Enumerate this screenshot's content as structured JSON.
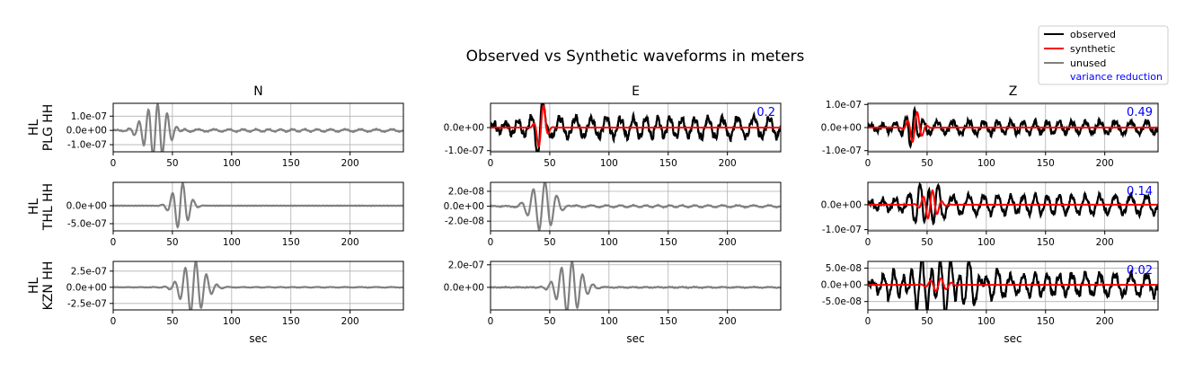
{
  "title": "Observed vs Synthetic waveforms in meters",
  "x_label": "sec",
  "legend": {
    "observed": "observed",
    "synthetic": "synthetic",
    "unused": "unused",
    "variance_reduction": "variance reduction"
  },
  "colors": {
    "observed": "#000000",
    "synthetic": "#ff0000",
    "unused": "#808080",
    "variance_reduction": "#0000ff",
    "grid": "#b0b0b0"
  },
  "column_titles": [
    "N",
    "E",
    "Z"
  ],
  "row_labels": [
    [
      "HL",
      "PLG HH"
    ],
    [
      "HL",
      "THL HH"
    ],
    [
      "HL",
      "KZN HH"
    ]
  ],
  "chart_data": {
    "type": "line",
    "xlim": [
      0,
      245
    ],
    "x_ticks": [
      0,
      50,
      100,
      150,
      200
    ],
    "x_tick_labels": [
      "0",
      "50",
      "100",
      "150",
      "200"
    ],
    "panels": [
      {
        "row": 0,
        "col": 0,
        "ylim": [
          -1.5e-07,
          1.9e-07
        ],
        "y_ticks": [
          1e-07,
          0.0,
          -1e-07
        ],
        "y_tick_labels": [
          "1.0e-07",
          "0.0e+00",
          "-1.0e-07"
        ],
        "variance_reduction": "",
        "observed": {
          "style": "unused",
          "center": 36,
          "amp": 1.9e-07,
          "period": 8,
          "width": 13,
          "decay": 8e-09,
          "noise": 3e-09
        }
      },
      {
        "row": 0,
        "col": 1,
        "ylim": [
          -1.05e-07,
          1.05e-07
        ],
        "y_ticks": [
          0.0,
          -1e-07
        ],
        "y_tick_labels": [
          "0.0e+00",
          "-1.0e-07"
        ],
        "variance_reduction": "0.2",
        "observed": {
          "style": "observed",
          "center": 42,
          "amp": 1.05e-07,
          "period": 9.5,
          "width": 5,
          "decay": 4e-08,
          "noise": 1.8e-08
        },
        "synthetic": {
          "center": 43,
          "amp": 1.05e-07,
          "period": 9,
          "width": 5,
          "decay": 0,
          "noise": 0
        }
      },
      {
        "row": 0,
        "col": 2,
        "ylim": [
          -1.05e-07,
          1.05e-07
        ],
        "y_ticks": [
          1e-07,
          0.0,
          -1e-07
        ],
        "y_tick_labels": [
          "1.0e-07",
          "0.0e+00",
          "-1.0e-07"
        ],
        "variance_reduction": "0.49",
        "observed": {
          "style": "observed",
          "center": 38,
          "amp": 1.05e-07,
          "period": 8,
          "width": 6,
          "decay": 2.5e-08,
          "noise": 1.2e-08
        },
        "synthetic": {
          "center": 40,
          "amp": 7e-08,
          "period": 8.5,
          "width": 7,
          "decay": 0,
          "noise": 0
        }
      },
      {
        "row": 1,
        "col": 0,
        "ylim": [
          -7e-07,
          6.5e-07
        ],
        "y_ticks": [
          0.0,
          -5e-07
        ],
        "y_tick_labels": [
          "0.0e+00",
          "-5.0e-07"
        ],
        "variance_reduction": "",
        "observed": {
          "style": "unused",
          "center": 57,
          "amp": 6.5e-07,
          "period": 9,
          "width": 9,
          "decay": 0,
          "noise": 6e-09
        }
      },
      {
        "row": 1,
        "col": 1,
        "ylim": [
          -3.3e-08,
          3.2e-08
        ],
        "y_ticks": [
          2e-08,
          0.0,
          -2e-08
        ],
        "y_tick_labels": [
          "2.0e-08",
          "0.0e+00",
          "-2.0e-08"
        ],
        "variance_reduction": "",
        "observed": {
          "style": "unused",
          "center": 44,
          "amp": 3.2e-08,
          "period": 10,
          "width": 13,
          "decay": 1.2e-09,
          "noise": 5e-10
        }
      },
      {
        "row": 1,
        "col": 2,
        "ylim": [
          -1.05e-07,
          9e-08
        ],
        "y_ticks": [
          0.0,
          -1e-07
        ],
        "y_tick_labels": [
          "0.0e+00",
          "-1.0e-07"
        ],
        "variance_reduction": "0.14",
        "observed": {
          "style": "observed",
          "center": 50,
          "amp": 9e-08,
          "period": 8,
          "width": 12,
          "decay": 3.5e-08,
          "noise": 1.2e-08
        },
        "synthetic": {
          "center": 53,
          "amp": 6e-08,
          "period": 8,
          "width": 8,
          "decay": 0,
          "noise": 0
        }
      },
      {
        "row": 2,
        "col": 0,
        "ylim": [
          -3.5e-07,
          4e-07
        ],
        "y_ticks": [
          2.5e-07,
          0.0,
          -2.5e-07
        ],
        "y_tick_labels": [
          "2.5e-07",
          "0.0e+00",
          "-2.5e-07"
        ],
        "variance_reduction": "",
        "observed": {
          "style": "unused",
          "center": 68,
          "amp": 4e-07,
          "period": 9,
          "width": 13,
          "decay": 4e-09,
          "noise": 3e-09
        }
      },
      {
        "row": 2,
        "col": 1,
        "ylim": [
          -2e-07,
          2.3e-07
        ],
        "y_ticks": [
          2e-07,
          0.0
        ],
        "y_tick_labels": [
          "2.0e-07",
          "0.0e+00"
        ],
        "variance_reduction": "",
        "observed": {
          "style": "unused",
          "center": 67,
          "amp": 2.3e-07,
          "period": 9,
          "width": 13,
          "decay": 3e-09,
          "noise": 3e-09
        }
      },
      {
        "row": 2,
        "col": 2,
        "ylim": [
          -7.5e-08,
          7e-08
        ],
        "y_ticks": [
          5e-08,
          0.0,
          -5e-08
        ],
        "y_tick_labels": [
          "5.0e-08",
          "0.0e+00",
          "-5.0e-08"
        ],
        "variance_reduction": "0.02",
        "observed": {
          "style": "observed",
          "center": 60,
          "amp": 6.5e-08,
          "period": 8,
          "width": 40,
          "decay": 3e-08,
          "noise": 1.2e-08
        },
        "synthetic": {
          "center": 60,
          "amp": 2e-08,
          "period": 9,
          "width": 10,
          "decay": 0,
          "noise": 0
        }
      }
    ]
  }
}
